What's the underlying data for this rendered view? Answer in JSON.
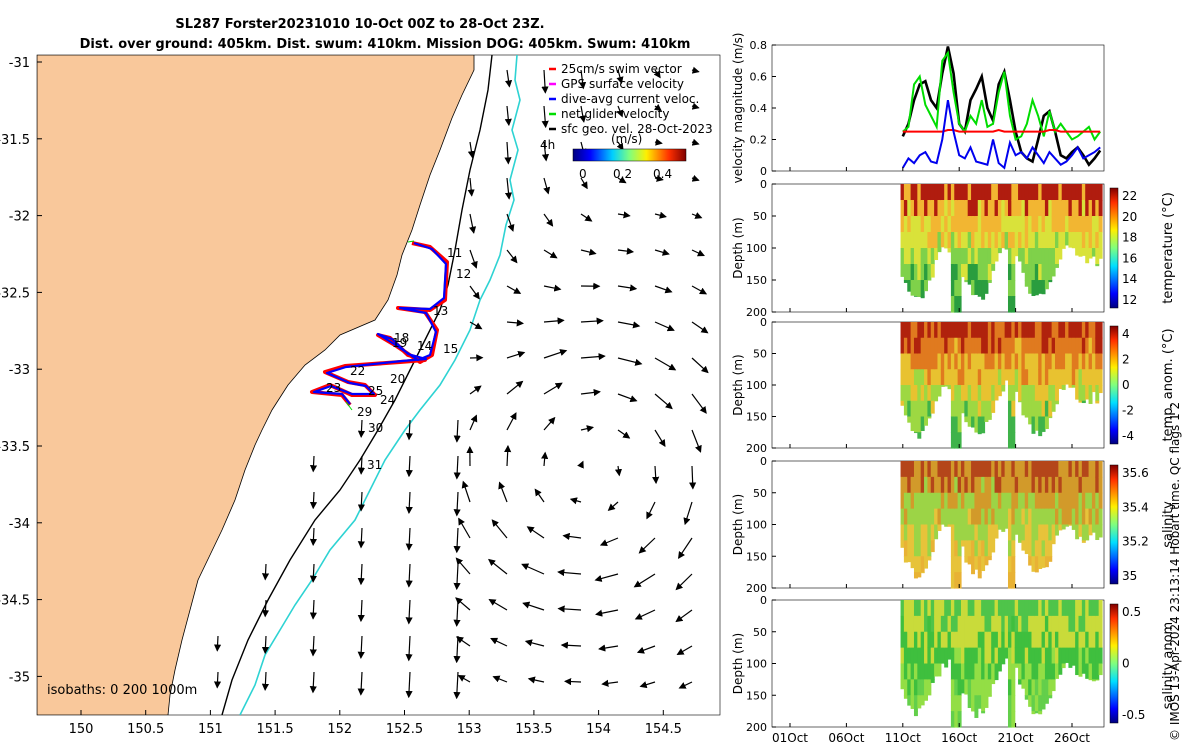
{
  "header": {
    "line1": "SL287 Forster20231010 10-Oct 00Z to 28-Oct 23Z.",
    "line2": "Dist. over ground: 405km. Dist. swum: 410km. Mission DOG: 405km. Swum: 410km"
  },
  "footer_note": "© IMOS 13-Apr-2024 23:13:14 Hobart time. QC flags 1  2",
  "map": {
    "x_ticks": [
      "150",
      "150.5",
      "151",
      "151.5",
      "152",
      "152.5",
      "153",
      "153.5",
      "154",
      "154.5"
    ],
    "y_ticks": [
      "-31",
      "-31.5",
      "-32",
      "-32.5",
      "-33",
      "-33.5",
      "-34",
      "-34.5",
      "-35"
    ],
    "isobath_label": "isobaths: 0   200   1000m",
    "colorbar_label": "(m/s)",
    "colorbar_ticks": [
      "0",
      "0.2",
      "0.4"
    ],
    "scale_label": "4h",
    "day_labels": [
      "11",
      "12",
      "13",
      "14",
      "15",
      "18",
      "19",
      "20",
      "22",
      "23",
      "24",
      "25",
      "29",
      "30",
      "31"
    ],
    "legend": [
      {
        "label": "25cm/s swim vector",
        "color": "#ff0000"
      },
      {
        "label": "GPS surface velocity",
        "color": "#ff00ff"
      },
      {
        "label": "dive-avg current veloc.",
        "color": "#0000ff"
      },
      {
        "label": "net glider velocity",
        "color": "#00dd00"
      },
      {
        "label": "sfc geo. vel. 28-Oct-2023",
        "color": "#000000"
      }
    ],
    "colors": {
      "land": "#f9c89b",
      "coast_200m": "#000000",
      "coast_1000m": "#2ed3d3"
    }
  },
  "chart_data": [
    {
      "type": "line",
      "ylabel": "velocity magnitude (m/s)",
      "ylim": [
        0,
        0.8
      ],
      "y_ticks": [
        "0",
        "0.2",
        "0.4",
        "0.6",
        "0.8"
      ],
      "x_days": [
        11,
        11.5,
        12,
        12.5,
        13,
        13.5,
        14,
        14.5,
        15,
        15.5,
        16,
        16.5,
        17,
        17.5,
        18,
        18.5,
        19,
        19.5,
        20,
        20.5,
        21,
        21.5,
        22,
        22.5,
        23,
        23.5,
        24,
        24.5,
        25,
        25.5,
        26,
        26.5,
        27,
        27.5,
        28,
        28.5
      ],
      "series": [
        {
          "name": "",
          "color": "#000000",
          "values": [
            0.22,
            0.3,
            0.45,
            0.55,
            0.57,
            0.45,
            0.4,
            0.62,
            0.79,
            0.62,
            0.3,
            0.25,
            0.45,
            0.52,
            0.6,
            0.4,
            0.32,
            0.55,
            0.63,
            0.45,
            0.25,
            0.12,
            0.08,
            0.06,
            0.2,
            0.35,
            0.38,
            0.25,
            0.1,
            0.08,
            0.12,
            0.15,
            0.1,
            0.04,
            0.08,
            0.13
          ]
        },
        {
          "name": "",
          "color": "#00dd00",
          "values": [
            0.25,
            0.28,
            0.55,
            0.6,
            0.42,
            0.35,
            0.28,
            0.7,
            0.75,
            0.5,
            0.3,
            0.25,
            0.35,
            0.3,
            0.45,
            0.28,
            0.3,
            0.5,
            0.63,
            0.35,
            0.2,
            0.22,
            0.3,
            0.45,
            0.35,
            0.22,
            0.38,
            0.25,
            0.3,
            0.25,
            0.2,
            0.22,
            0.25,
            0.28,
            0.2,
            0.25
          ]
        },
        {
          "name": "",
          "color": "#ff0000",
          "values": [
            0.25,
            0.25,
            0.25,
            0.25,
            0.25,
            0.25,
            0.25,
            0.25,
            0.26,
            0.26,
            0.25,
            0.25,
            0.25,
            0.25,
            0.25,
            0.25,
            0.25,
            0.26,
            0.25,
            0.25,
            0.25,
            0.25,
            0.25,
            0.25,
            0.25,
            0.25,
            0.26,
            0.26,
            0.25,
            0.25,
            0.25,
            0.25,
            0.25,
            0.25,
            0.25,
            0.25
          ]
        },
        {
          "name": "",
          "color": "#0000ee",
          "values": [
            0.02,
            0.08,
            0.05,
            0.1,
            0.12,
            0.06,
            0.05,
            0.2,
            0.45,
            0.25,
            0.1,
            0.08,
            0.15,
            0.06,
            0.05,
            0.04,
            0.2,
            0.05,
            0.02,
            0.18,
            0.1,
            0.12,
            0.08,
            0.15,
            0.1,
            0.05,
            0.12,
            0.08,
            0.04,
            0.06,
            0.1,
            0.15,
            0.08,
            0.1,
            0.12,
            0.15
          ]
        }
      ]
    },
    {
      "type": "heatmap",
      "ylabel": "Depth (m)",
      "y_ticks": [
        "0",
        "50",
        "100",
        "150",
        "200"
      ],
      "colorbar_label": "temperature (°C)",
      "colorbar_ticks": [
        "22",
        "20",
        "18",
        "16",
        "14",
        "12"
      ],
      "clim": [
        11,
        23
      ],
      "colormap": "jet"
    },
    {
      "type": "heatmap",
      "ylabel": "Depth (m)",
      "y_ticks": [
        "0",
        "50",
        "100",
        "150",
        "200"
      ],
      "colorbar_label": "temp. anom. (°C)",
      "colorbar_ticks": [
        "4",
        "2",
        "0",
        "-2",
        "-4"
      ],
      "clim": [
        -4,
        4
      ],
      "colormap": "jet"
    },
    {
      "type": "heatmap",
      "ylabel": "Depth (m)",
      "y_ticks": [
        "0",
        "50",
        "100",
        "150",
        "200"
      ],
      "colorbar_label": "salinity",
      "colorbar_ticks": [
        "35.6",
        "35.4",
        "35.2",
        "35"
      ],
      "clim": [
        34.9,
        35.7
      ],
      "colormap": "jet"
    },
    {
      "type": "heatmap",
      "ylabel": "Depth (m)",
      "y_ticks": [
        "0",
        "50",
        "100",
        "150",
        "200"
      ],
      "colorbar_label": "salinity anom.",
      "colorbar_ticks": [
        "0.5",
        "0",
        "-0.5"
      ],
      "clim": [
        -0.5,
        0.5
      ],
      "colormap": "jet"
    }
  ],
  "time_axis": {
    "x_ticks": [
      "01Oct",
      "06Oct",
      "11Oct",
      "16Oct",
      "21Oct",
      "26Oct"
    ]
  }
}
